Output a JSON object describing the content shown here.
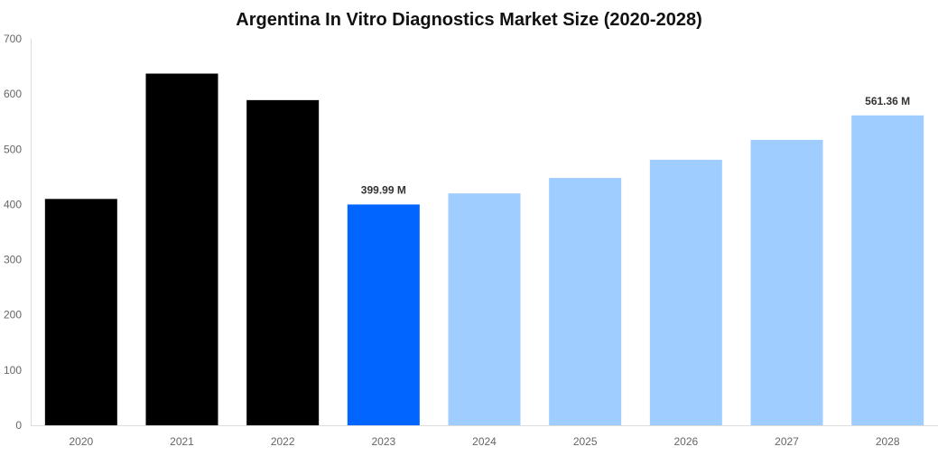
{
  "chart_data": {
    "type": "bar",
    "title": "Argentina In Vitro Diagnostics Market Size (2020-2028)",
    "xlabel": "",
    "ylabel": "",
    "categories": [
      "2020",
      "2021",
      "2022",
      "2023",
      "2024",
      "2025",
      "2026",
      "2027",
      "2028"
    ],
    "values": [
      410,
      637,
      589,
      399.99,
      420,
      448,
      481,
      517,
      561.36
    ],
    "colors": [
      "#000000",
      "#000000",
      "#000000",
      "#0066ff",
      "#a0cdff",
      "#a0cdff",
      "#a0cdff",
      "#a0cdff",
      "#a0cdff"
    ],
    "data_labels": {
      "3": "399.99 M",
      "8": "561.36 M"
    },
    "ylim": [
      0,
      700
    ],
    "yticks": [
      0,
      100,
      200,
      300,
      400,
      500,
      600,
      700
    ],
    "grid": false,
    "legend": "none"
  }
}
